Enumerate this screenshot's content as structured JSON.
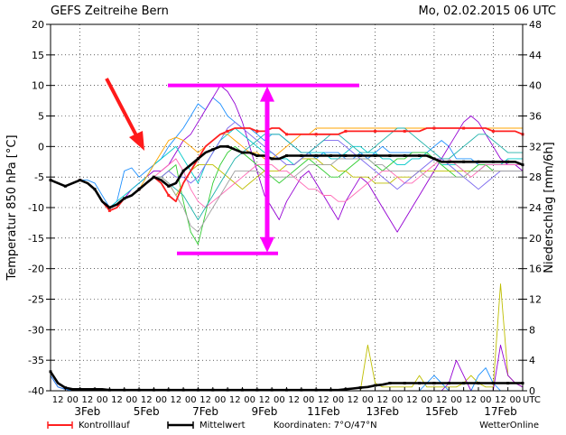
{
  "header": {
    "left_title": "GEFS Zeitreihe Bern",
    "right_title": "Mo, 02.02.2015 06 UTC"
  },
  "axes": {
    "left_label": "Temperatur 850 hPa [°C]",
    "right_label": "Niederschlag [mm/6h]",
    "utc_label": "UTC"
  },
  "footer": {
    "legend_control": "Kontrolllauf",
    "legend_mean": "Mittelwert",
    "coordinates": "Koordinaten: 7°O/47°N",
    "brand": "WetterOnline"
  },
  "colors": {
    "control": "#ff2020",
    "mean": "#000000",
    "annotation": "#ff00ff",
    "arrow": "#ff1a1a",
    "grid": "#000000"
  },
  "chart_data": {
    "type": "line",
    "title": "GEFS Zeitreihe Bern",
    "run": "Mo, 02.02.2015 06 UTC",
    "x_unit": "hours since 2015-02-02 06 UTC",
    "xlim": [
      0,
      384
    ],
    "left_axis": {
      "label": "Temperatur 850 hPa [°C]",
      "ylim": [
        -40,
        20
      ],
      "ticks": [
        20,
        15,
        10,
        5,
        0,
        -5,
        -10,
        -15,
        -20,
        -25,
        -30,
        -35,
        -40
      ]
    },
    "right_axis": {
      "label": "Niederschlag [mm/6h]",
      "ylim": [
        0,
        48
      ],
      "ticks": [
        48,
        44,
        40,
        36,
        32,
        28,
        24,
        20,
        16,
        12,
        8,
        4,
        0
      ]
    },
    "x_hour_labels": [
      "12",
      "00",
      "12",
      "00",
      "12",
      "00",
      "12",
      "00",
      "12",
      "00",
      "12",
      "00",
      "12",
      "00",
      "12",
      "00",
      "12",
      "00",
      "12",
      "00",
      "12",
      "00",
      "12",
      "00",
      "12",
      "00",
      "12",
      "00",
      "12",
      "00",
      "12",
      "00"
    ],
    "x_date_labels": [
      "3Feb",
      "5Feb",
      "7Feb",
      "9Feb",
      "11Feb",
      "13Feb",
      "15Feb",
      "17Feb"
    ],
    "grid": true,
    "temperature_series": [
      {
        "name": "Mittelwert",
        "color": "#000000",
        "values": [
          -5.5,
          -6,
          -6.5,
          -6,
          -5.5,
          -6,
          -7,
          -9,
          -10,
          -9.5,
          -8.5,
          -8,
          -7,
          -6,
          -5,
          -5.5,
          -6.5,
          -6,
          -4,
          -3,
          -2,
          -1,
          -0.5,
          0,
          0,
          -0.5,
          -1,
          -1,
          -1.5,
          -1.5,
          -2,
          -2,
          -1.5,
          -1.5,
          -1.5,
          -1.5,
          -1.5,
          -1.5,
          -1.5,
          -1.5,
          -1.5,
          -1.5,
          -1.5,
          -1.5,
          -1.5,
          -1.5,
          -1.5,
          -1.5,
          -1.5,
          -1.5,
          -1.5,
          -1.5,
          -2,
          -2.5,
          -2.5,
          -2.5,
          -2.5,
          -2.5,
          -2.5,
          -2.5,
          -2.5,
          -2.5,
          -2.5,
          -2.5,
          -3
        ]
      },
      {
        "name": "Kontrolllauf",
        "color": "#ff2020",
        "values": [
          -5.5,
          -6,
          -6.5,
          -6,
          -5.5,
          -6,
          -7,
          -9,
          -10.5,
          -10,
          -8.5,
          -8,
          -7,
          -6,
          -5,
          -6,
          -8,
          -9,
          -6,
          -4,
          -2,
          0,
          1,
          2,
          2.5,
          3,
          3,
          3,
          2.5,
          2.5,
          3,
          3,
          2,
          2,
          2,
          2,
          2,
          2,
          2,
          2,
          2.5,
          2.5,
          2.5,
          2.5,
          2.5,
          2.5,
          2.5,
          2.5,
          2.5,
          2.5,
          2.5,
          3,
          3,
          3,
          3,
          3,
          3,
          3,
          3,
          3,
          2.5,
          2.5,
          2.5,
          2.5,
          2
        ]
      },
      {
        "name": "",
        "color": "#1e90ff",
        "values": [
          -5.5,
          -6,
          -6.5,
          -6,
          -5.5,
          -5.5,
          -6,
          -8,
          -10,
          -9,
          -4,
          -3.5,
          -5,
          -4,
          -3,
          -2,
          0,
          1.5,
          3,
          5,
          7,
          6,
          8,
          7,
          5,
          4,
          3,
          3,
          2,
          1,
          2,
          2,
          1,
          0,
          -1,
          -1,
          -2,
          -1,
          -1,
          -1,
          -2,
          -2,
          -1,
          -2,
          -1,
          0,
          -1,
          -1,
          -1,
          -1,
          -1,
          -1,
          0,
          1,
          0,
          -2,
          -2,
          -2,
          -3,
          -3,
          -3,
          -3,
          -3,
          -3,
          -3
        ]
      },
      {
        "name": "",
        "color": "#9400d3",
        "values": [
          -5.5,
          -6,
          -6.5,
          -6,
          -5.5,
          -6,
          -7,
          -9,
          -10,
          -9.5,
          -8.5,
          -7,
          -6,
          -5,
          -4,
          -4,
          -3,
          -1,
          1,
          2,
          4,
          6,
          8,
          10,
          9,
          7,
          4,
          0,
          -4,
          -8,
          -10,
          -12,
          -9,
          -7,
          -5,
          -4,
          -6,
          -8,
          -10,
          -12,
          -9,
          -7,
          -5,
          -6,
          -8,
          -10,
          -12,
          -14,
          -12,
          -10,
          -8,
          -6,
          -4,
          -2,
          0,
          2,
          4,
          5,
          4,
          2,
          0,
          -2,
          -3,
          -3,
          -4
        ]
      },
      {
        "name": "",
        "color": "#00c8c8",
        "values": [
          -5.5,
          -6,
          -6.5,
          -6,
          -5.5,
          -6,
          -7,
          -9,
          -10,
          -9,
          -8,
          -7,
          -6,
          -5,
          -3,
          -2,
          -1,
          0,
          -2,
          -4,
          -6,
          -3,
          -1,
          1,
          2,
          3,
          2,
          1,
          0,
          -1,
          -1,
          -2,
          -2,
          -3,
          -2,
          -1,
          -1,
          -1,
          -2,
          -2,
          -1,
          0,
          0,
          -1,
          -1,
          -2,
          -2,
          -3,
          -3,
          -2,
          -2,
          -1,
          -2,
          -3,
          -3,
          -3,
          -4,
          -4,
          -4,
          -3,
          -3,
          -3,
          -2,
          -2,
          -2
        ]
      },
      {
        "name": "",
        "color": "#32cd32",
        "values": [
          -5.5,
          -6,
          -6.5,
          -6,
          -5.5,
          -6,
          -7,
          -9,
          -10,
          -9.5,
          -8.5,
          -8,
          -7,
          -6,
          -5,
          -5,
          -4,
          -3,
          -9,
          -14,
          -16,
          -11,
          -6,
          -3,
          -1,
          0,
          -1,
          -2,
          -3,
          -4,
          -5,
          -6,
          -5,
          -4,
          -3,
          -2,
          -3,
          -4,
          -5,
          -5,
          -4,
          -3,
          -2,
          -2,
          -3,
          -4,
          -3,
          -2,
          -2,
          -1,
          -1,
          -1,
          -2,
          -3,
          -4,
          -5,
          -5,
          -4,
          -3,
          -3,
          -4,
          -4,
          -4,
          -4,
          -4
        ]
      },
      {
        "name": "",
        "color": "#ffa500",
        "values": [
          -5.5,
          -6,
          -6.5,
          -6,
          -5.5,
          -6,
          -7,
          -9,
          -10,
          -9.5,
          -8.5,
          -8,
          -7,
          -5,
          -3,
          -1,
          1,
          1.5,
          1,
          0,
          -1,
          0,
          1,
          2,
          2,
          1,
          0,
          -1,
          -1,
          -2,
          -2,
          -1,
          0,
          1,
          2,
          2,
          3,
          3,
          3,
          3,
          3,
          3,
          3,
          3,
          3,
          3,
          3,
          3,
          3,
          3,
          3,
          3,
          3,
          3,
          3,
          3,
          3,
          3,
          3,
          3,
          3,
          3,
          3,
          3,
          3
        ]
      },
      {
        "name": "",
        "color": "#bebe00",
        "values": [
          -5.5,
          -6,
          -6.5,
          -6,
          -5.5,
          -6,
          -7,
          -9,
          -10,
          -9.5,
          -8.5,
          -8,
          -7,
          -6,
          -5,
          -5,
          -6,
          -8,
          -6,
          -4,
          -3,
          -3,
          -3,
          -4,
          -5,
          -6,
          -7,
          -6,
          -5,
          -4,
          -4,
          -4,
          -3,
          -3,
          -2,
          -2,
          -2,
          -3,
          -3,
          -4,
          -4,
          -5,
          -5,
          -5,
          -6,
          -6,
          -6,
          -5,
          -5,
          -5,
          -4,
          -4,
          -4,
          -4,
          -4,
          -4,
          -4,
          -4,
          -4,
          -4,
          -4,
          -4,
          -4,
          -4,
          -4
        ]
      },
      {
        "name": "",
        "color": "#ff69b4",
        "values": [
          -5.5,
          -6,
          -6.5,
          -6,
          -5.5,
          -6,
          -7,
          -9,
          -10,
          -9.5,
          -8.5,
          -8,
          -7,
          -6,
          -5,
          -4,
          -3,
          -2,
          -4,
          -7,
          -9,
          -10,
          -9,
          -8,
          -7,
          -6,
          -5,
          -4,
          -3,
          -3,
          -3,
          -4,
          -4,
          -5,
          -6,
          -7,
          -7,
          -8,
          -8,
          -9,
          -9,
          -8,
          -7,
          -6,
          -5,
          -4,
          -4,
          -5,
          -6,
          -6,
          -5,
          -4,
          -3,
          -2,
          -2,
          -3,
          -4,
          -5,
          -4,
          -3,
          -3,
          -3,
          -3,
          -3,
          -3
        ]
      },
      {
        "name": "",
        "color": "#7b68ee",
        "values": [
          -5.5,
          -6,
          -6.5,
          -6,
          -5.5,
          -6,
          -7,
          -9,
          -10,
          -9.5,
          -8.5,
          -8,
          -7,
          -6,
          -5,
          -5,
          -4,
          -5,
          -5,
          -6,
          -5,
          -3,
          -1,
          1,
          3,
          4,
          3,
          2,
          1,
          0,
          -1,
          -2,
          -3,
          -3,
          -2,
          -1,
          0,
          1,
          1,
          1,
          0,
          -1,
          -2,
          -3,
          -4,
          -5,
          -6,
          -7,
          -6,
          -5,
          -4,
          -3,
          -2,
          -2,
          -3,
          -4,
          -5,
          -6,
          -7,
          -6,
          -5,
          -4,
          -4,
          -4,
          -4
        ]
      },
      {
        "name": "",
        "color": "#20b2aa",
        "values": [
          -5.5,
          -6,
          -6.5,
          -6,
          -5.5,
          -6,
          -7,
          -9,
          -10,
          -9.5,
          -8.5,
          -8,
          -7,
          -6,
          -5,
          -5,
          -6,
          -7,
          -8,
          -10,
          -12,
          -10,
          -8,
          -6,
          -4,
          -2,
          -1,
          0,
          1,
          2,
          2,
          2,
          1,
          0,
          -1,
          -1,
          0,
          1,
          2,
          2,
          1,
          0,
          -1,
          -1,
          0,
          1,
          2,
          3,
          3,
          2,
          1,
          0,
          -1,
          -2,
          -2,
          -1,
          0,
          1,
          2,
          2,
          1,
          0,
          -1,
          -1,
          -1
        ]
      },
      {
        "name": "",
        "color": "#a0a0a0",
        "values": [
          -5.5,
          -6,
          -6.5,
          -6,
          -5.5,
          -6,
          -7,
          -9,
          -10,
          -9.5,
          -8.5,
          -8,
          -7,
          -6,
          -5,
          -5,
          -6,
          -8,
          -10,
          -13,
          -14,
          -12,
          -10,
          -8,
          -6,
          -4,
          -4,
          -4,
          -4,
          -5,
          -5,
          -5,
          -5,
          -5,
          -4,
          -3,
          -3,
          -3,
          -3,
          -2,
          -2,
          -2,
          -2,
          -2,
          -3,
          -3,
          -4,
          -4,
          -4,
          -4,
          -4,
          -5,
          -5,
          -5,
          -5,
          -5,
          -5,
          -4,
          -4,
          -4,
          -4,
          -4,
          -4,
          -4,
          -4
        ]
      }
    ],
    "precipitation_series": [
      {
        "name": "Mittelwert",
        "color": "#000000",
        "values": [
          2.5,
          1,
          0.4,
          0.2,
          0.2,
          0.2,
          0.2,
          0.2,
          0.1,
          0.1,
          0.1,
          0.1,
          0.1,
          0.1,
          0.1,
          0.1,
          0.1,
          0.1,
          0.1,
          0.1,
          0.1,
          0.1,
          0.1,
          0.1,
          0.1,
          0.1,
          0.1,
          0.1,
          0.1,
          0.1,
          0.1,
          0.1,
          0.1,
          0.1,
          0.1,
          0.1,
          0.1,
          0.1,
          0.1,
          0.1,
          0.2,
          0.3,
          0.4,
          0.5,
          0.7,
          0.8,
          1,
          1,
          1,
          1,
          1,
          1,
          1,
          1,
          1,
          1,
          1,
          1,
          1,
          1,
          1,
          1,
          1,
          1,
          1
        ]
      },
      {
        "name": "",
        "color": "#bebe00",
        "values": [
          2,
          0.5,
          0.2,
          0,
          0,
          0,
          0,
          0,
          0,
          0,
          0,
          0,
          0,
          0,
          0,
          0,
          0,
          0,
          0,
          0,
          0,
          0,
          0,
          0,
          0,
          0,
          0,
          0,
          0,
          0,
          0,
          0,
          0,
          0,
          0,
          0,
          0,
          0,
          0,
          0,
          0,
          0,
          0,
          6,
          1,
          0.5,
          0.5,
          0.5,
          0.5,
          0.5,
          2,
          0.5,
          0.5,
          0.5,
          0.5,
          0.5,
          1,
          2,
          1,
          0.5,
          0.5,
          14,
          2,
          1,
          0.5
        ]
      },
      {
        "name": "",
        "color": "#9400d3",
        "values": [
          2,
          0.5,
          0.2,
          0,
          0,
          0,
          0,
          0,
          0,
          0,
          0,
          0,
          0,
          0,
          0,
          0,
          0,
          0,
          0,
          0,
          0,
          0,
          0,
          0,
          0,
          0,
          0,
          0,
          0,
          0,
          0,
          0,
          0,
          0,
          0,
          0,
          0,
          0,
          0,
          0,
          0,
          0,
          0,
          0,
          0,
          0,
          0,
          0,
          0,
          0,
          0,
          0,
          0,
          0,
          1,
          4,
          2,
          0,
          0,
          0,
          0,
          6,
          2,
          1,
          0.5
        ]
      },
      {
        "name": "",
        "color": "#1e90ff",
        "values": [
          2,
          0.5,
          0.2,
          0,
          0,
          0,
          0,
          0,
          0,
          0,
          0,
          0,
          0,
          0,
          0,
          0,
          0,
          0,
          0,
          0,
          0,
          0,
          0,
          0,
          0,
          0,
          0,
          0,
          0,
          0,
          0,
          0,
          0,
          0,
          0,
          0,
          0,
          0,
          0,
          0,
          0,
          0,
          0,
          0,
          0,
          0,
          0,
          0,
          0,
          0,
          0,
          1,
          2,
          1,
          0,
          0,
          0,
          0,
          2,
          3,
          1,
          0,
          0,
          0,
          0
        ]
      }
    ],
    "annotations": [
      {
        "type": "bracket",
        "color": "#ff00ff",
        "top": 10,
        "bottom": -17.5,
        "description": "spread range"
      },
      {
        "type": "arrow",
        "color": "#ff1a1a"
      }
    ]
  }
}
